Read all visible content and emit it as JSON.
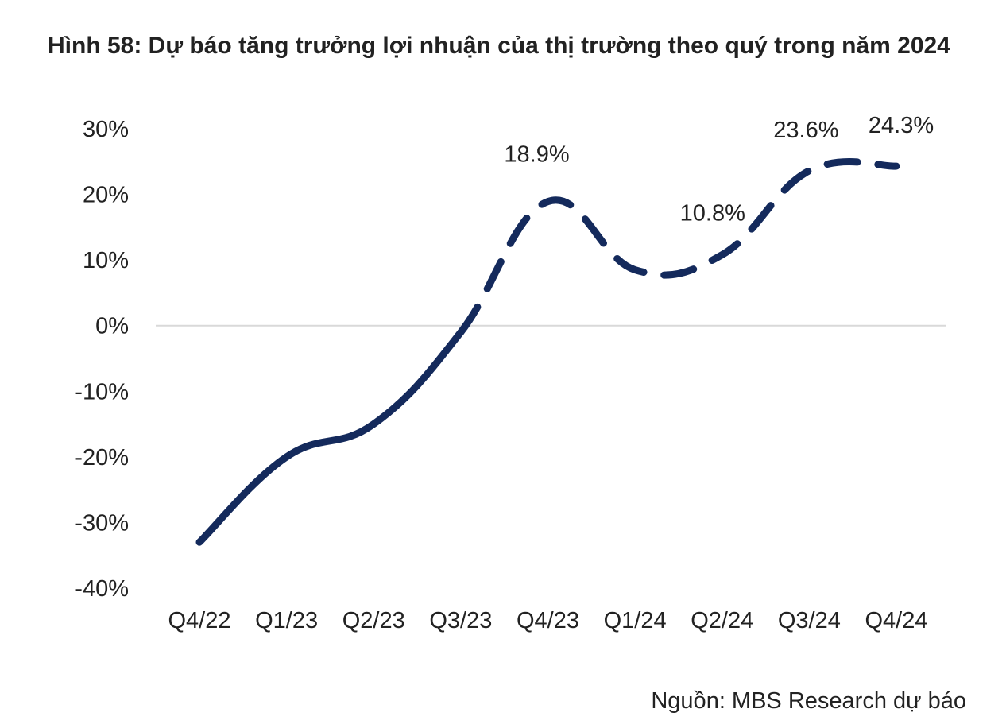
{
  "chart_data": {
    "type": "line",
    "title": "Hình 58: Dự báo tăng trưởng lợi nhuận của thị trường theo quý trong năm 2024",
    "source": "Nguồn: MBS Research dự báo",
    "categories": [
      "Q4/22",
      "Q1/23",
      "Q2/23",
      "Q3/23",
      "Q4/23",
      "Q1/24",
      "Q2/24",
      "Q3/24",
      "Q4/24"
    ],
    "series": [
      {
        "values": [
          -33.0,
          -20.0,
          -15.0,
          -1.0,
          18.9,
          8.5,
          10.8,
          23.6,
          24.3
        ],
        "solid_through_index": 3,
        "color": "#142a5c"
      }
    ],
    "data_labels": [
      {
        "index": 4,
        "text": "18.9%"
      },
      {
        "index": 6,
        "text": "10.8%"
      },
      {
        "index": 7,
        "text": "23.6%"
      },
      {
        "index": 8,
        "text": "24.3%"
      }
    ],
    "y_ticks": [
      "30%",
      "20%",
      "10%",
      "0%",
      "-10%",
      "-20%",
      "-30%",
      "-40%"
    ],
    "ylim": [
      -40,
      30
    ],
    "zero_line": true,
    "grid": false,
    "legend": "none"
  }
}
